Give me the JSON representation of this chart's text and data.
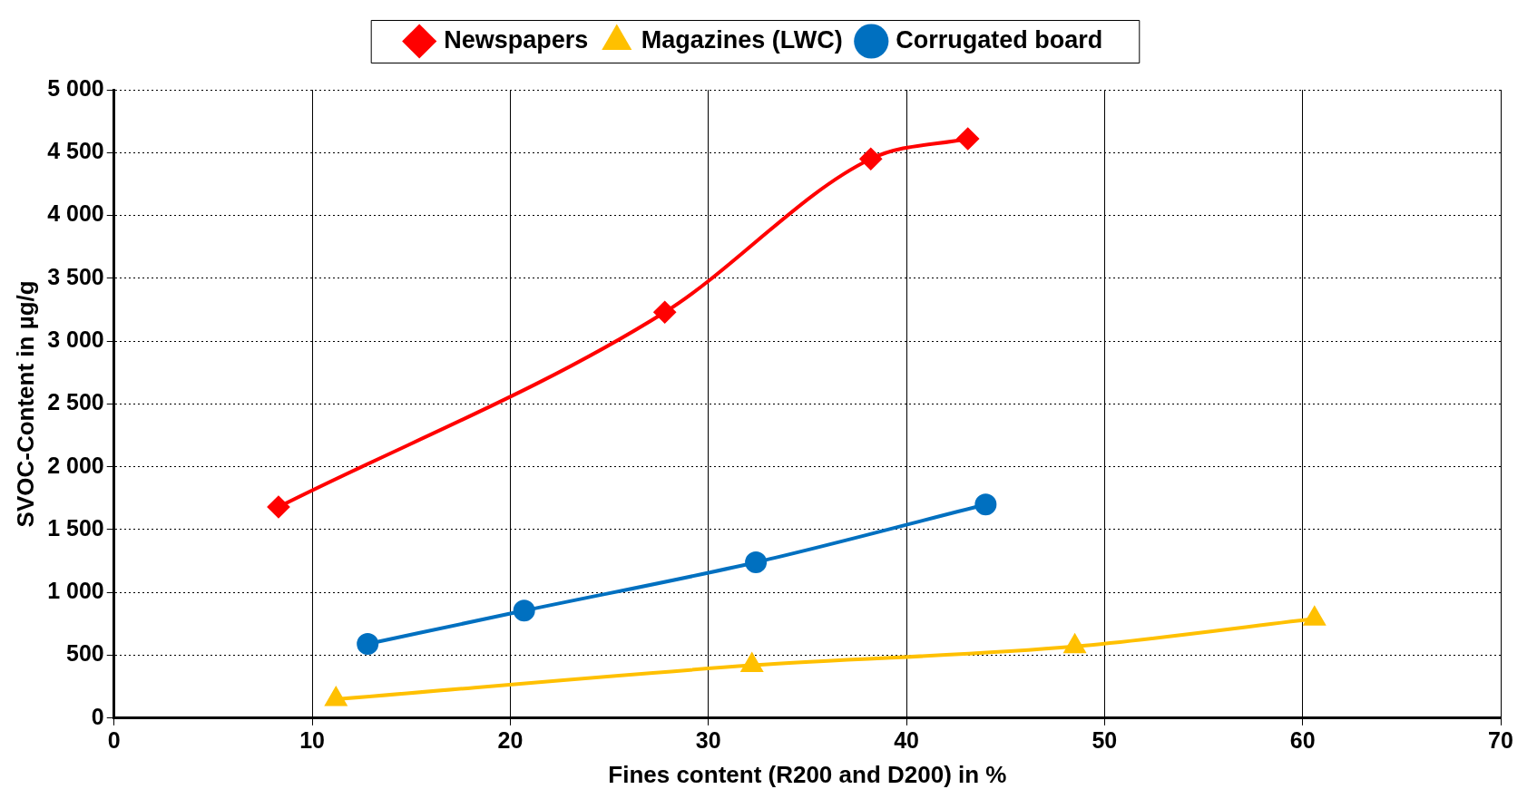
{
  "chart_data": {
    "type": "line",
    "xlabel": "Fines content (R200 and D200) in %",
    "ylabel": "SVOC-Content in µg/g",
    "xlim": [
      0,
      70
    ],
    "xticks": [
      0,
      10,
      20,
      30,
      40,
      50,
      60,
      70
    ],
    "ylim": [
      0,
      5000
    ],
    "yticks": [
      0,
      {
        "value": 500,
        "label": "500"
      },
      {
        "value": 1000,
        "label": "1 000"
      },
      {
        "value": 1500,
        "label": "1 500"
      },
      {
        "value": 2000,
        "label": "2 000"
      },
      {
        "value": 2500,
        "label": "2 500"
      },
      {
        "value": 3000,
        "label": "3 000"
      },
      {
        "value": 3500,
        "label": "3 500"
      },
      {
        "value": 4000,
        "label": "4 000"
      },
      {
        "value": 4500,
        "label": "4 500"
      },
      {
        "value": 5000,
        "label": "5 000"
      }
    ],
    "grid": true,
    "legend": "top",
    "line_style": "solid",
    "series": [
      {
        "name": "Newspapers",
        "color": "#ff0000",
        "marker": "diamond",
        "x": [
          8.3,
          27.8,
          38.2,
          43.1
        ],
        "values": [
          1680,
          3230,
          4450,
          4610
        ]
      },
      {
        "name": "Magazines (LWC)",
        "color": "#ffc000",
        "marker": "triangle",
        "x": [
          11.2,
          32.2,
          48.5,
          60.6
        ],
        "values": [
          150,
          420,
          570,
          790
        ]
      },
      {
        "name": "Corrugated board",
        "color": "#0070c0",
        "marker": "circle",
        "x": [
          12.8,
          20.7,
          32.4,
          44.0
        ],
        "values": [
          590,
          855,
          1240,
          1700
        ]
      }
    ]
  }
}
